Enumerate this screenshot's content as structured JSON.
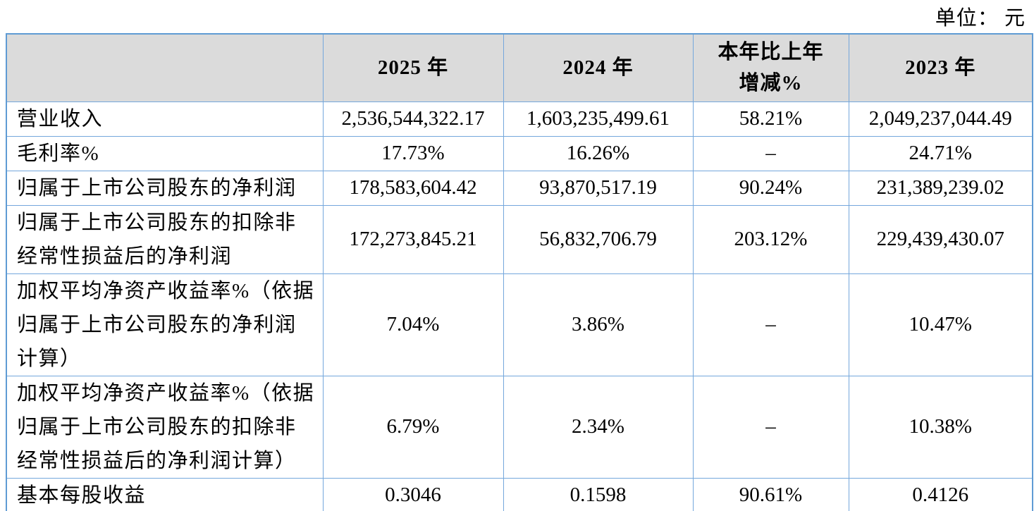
{
  "unit_label": "单位： 元",
  "table": {
    "header": {
      "col_metric": "",
      "col_2025": "2025 年",
      "col_2024": "2024 年",
      "col_change": "本年比上年\n增减%",
      "col_2023": "2023 年"
    },
    "rows": [
      {
        "label": "营业收入",
        "v2025": "2,536,544,322.17",
        "v2024": "1,603,235,499.61",
        "change": "58.21%",
        "v2023": "2,049,237,044.49"
      },
      {
        "label": "毛利率%",
        "v2025": "17.73%",
        "v2024": "16.26%",
        "change": "–",
        "v2023": "24.71%"
      },
      {
        "label": "归属于上市公司股东的净利润",
        "v2025": "178,583,604.42",
        "v2024": "93,870,517.19",
        "change": "90.24%",
        "v2023": "231,389,239.02"
      },
      {
        "label": "归属于上市公司股东的扣除非\n经常性损益后的净利润",
        "v2025": "172,273,845.21",
        "v2024": "56,832,706.79",
        "change": "203.12%",
        "v2023": "229,439,430.07"
      },
      {
        "label": "加权平均净资产收益率%（依据\n归属于上市公司股东的净利润\n计算）",
        "v2025": "7.04%",
        "v2024": "3.86%",
        "change": "–",
        "v2023": "10.47%"
      },
      {
        "label": "加权平均净资产收益率%（依据\n归属于上市公司股东的扣除非\n经常性损益后的净利润计算）",
        "v2025": "6.79%",
        "v2024": "2.34%",
        "change": "–",
        "v2023": "10.38%"
      },
      {
        "label": "基本每股收益",
        "v2025": "0.3046",
        "v2024": "0.1598",
        "change": "90.61%",
        "v2023": "0.4126"
      }
    ]
  }
}
